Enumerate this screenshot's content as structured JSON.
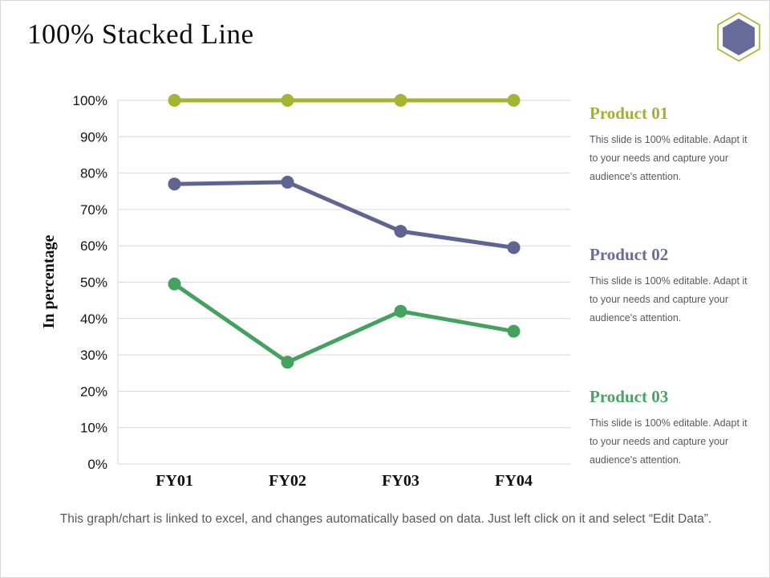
{
  "title": "100% Stacked Line",
  "logo": {
    "icon": "hexagon-icon",
    "outer_color": "#a6b52f",
    "inner_color": "#666b99"
  },
  "chart_data": {
    "type": "line",
    "x": [
      "FY01",
      "FY02",
      "FY03",
      "FY04"
    ],
    "series": [
      {
        "name": "Product 01",
        "color": "#a5b433",
        "values": [
          100,
          100,
          100,
          100
        ]
      },
      {
        "name": "Product 02",
        "color": "#5f6593",
        "values": [
          77,
          77.5,
          64,
          59.5
        ]
      },
      {
        "name": "Product 03",
        "color": "#44a25e",
        "values": [
          49.5,
          28,
          42,
          36.5
        ]
      }
    ],
    "ylabel": "In percentage",
    "ylim": [
      0,
      100
    ],
    "ytick_step": 10,
    "ytick_format": "percent",
    "grid": true,
    "grid_color": "#d9d9d9",
    "legend_position": "none",
    "marker_radius": 8,
    "line_width": 5
  },
  "products": [
    {
      "name": "Product 01",
      "color": "#a0b02f",
      "description": "This slide is 100% editable. Adapt it to your needs and capture your audience's attention."
    },
    {
      "name": "Product 02",
      "color": "#686d99",
      "description": "This slide is 100% editable. Adapt it to your needs and capture your audience's attention."
    },
    {
      "name": "Product 03",
      "color": "#4ba266",
      "description": "This slide is 100% editable. Adapt it to your needs and capture your audience's attention."
    }
  ],
  "footer": "This graph/chart is linked to excel, and changes automatically  based on data. Just left click on it and select “Edit Data”."
}
